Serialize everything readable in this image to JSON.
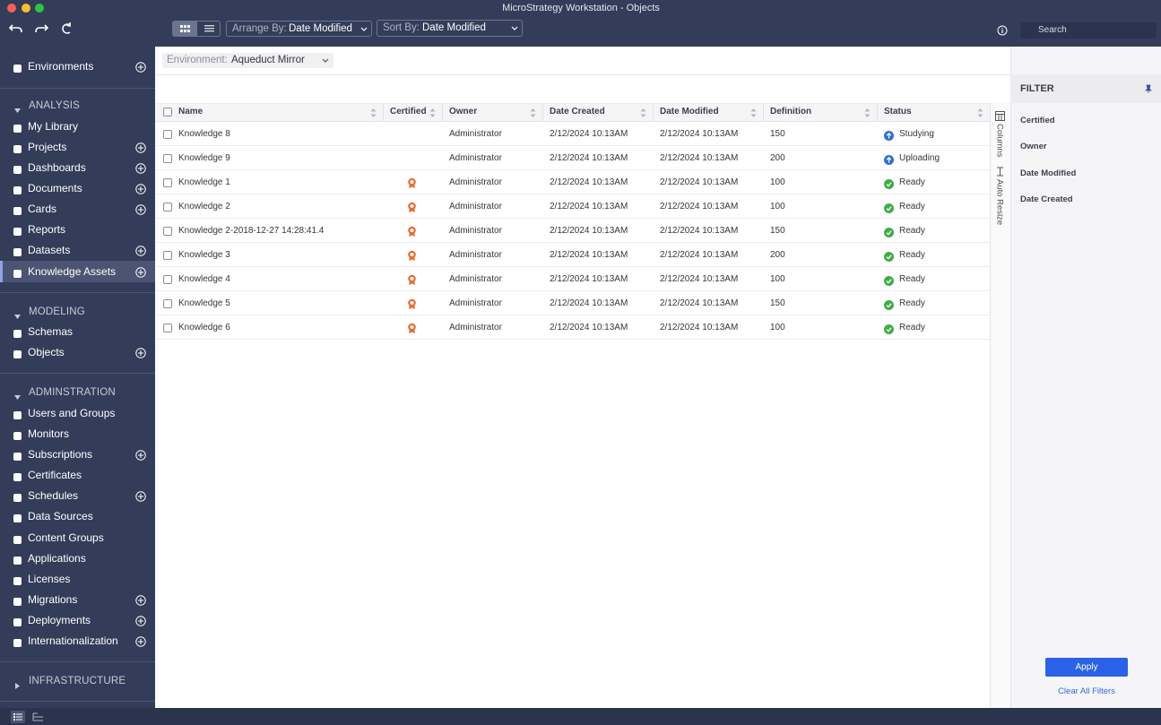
{
  "window": {
    "title": "MicroStrategy Workstation - Objects"
  },
  "toolbar": {
    "arrange_label": "Arrange By:",
    "arrange_value": "Date Modified",
    "sort_label": "Sort By:",
    "sort_value": "Date Modified",
    "search": "Search"
  },
  "environment": {
    "label": "Environment:",
    "value": "Aqueduct Mirror"
  },
  "sidebar": {
    "top": {
      "label": "Environments",
      "add": true
    },
    "sections": [
      {
        "title": "ANALYSIS",
        "expanded": true,
        "items": [
          {
            "label": "My Library",
            "add": false
          },
          {
            "label": "Projects",
            "add": true
          },
          {
            "label": "Dashboards",
            "add": true
          },
          {
            "label": "Documents",
            "add": true
          },
          {
            "label": "Cards",
            "add": true
          },
          {
            "label": "Reports",
            "add": false
          },
          {
            "label": "Datasets",
            "add": true
          },
          {
            "label": "Knowledge Assets",
            "add": true,
            "active": true
          }
        ]
      },
      {
        "title": "MODELING",
        "expanded": true,
        "items": [
          {
            "label": "Schemas",
            "add": false
          },
          {
            "label": "Objects",
            "add": true
          }
        ]
      },
      {
        "title": "ADMINSTRATION",
        "expanded": true,
        "items": [
          {
            "label": "Users and Groups",
            "add": false
          },
          {
            "label": "Monitors",
            "add": false
          },
          {
            "label": "Subscriptions",
            "add": true
          },
          {
            "label": "Certificates",
            "add": false
          },
          {
            "label": "Schedules",
            "add": true
          },
          {
            "label": "Data Sources",
            "add": false
          },
          {
            "label": "Content Groups",
            "add": false
          },
          {
            "label": "Applications",
            "add": false
          },
          {
            "label": "Licenses",
            "add": false
          },
          {
            "label": "Migrations",
            "add": true
          },
          {
            "label": "Deployments",
            "add": true
          },
          {
            "label": "Internationalization",
            "add": true
          }
        ]
      },
      {
        "title": "INFRASTRUCTURE",
        "expanded": false,
        "items": []
      }
    ]
  },
  "table": {
    "columns": [
      "Name",
      "Certified",
      "Owner",
      "Date Created",
      "Date Modified",
      "Definition",
      "Status"
    ],
    "rows": [
      {
        "name": "Knowledge 8",
        "certified": false,
        "owner": "Administrator",
        "date_created": "2/12/2024 10:13AM",
        "date_modified": "2/12/2024 10:13AM",
        "definition": 150,
        "status": "Studying",
        "status_icon": "upload"
      },
      {
        "name": "Knowledge 9",
        "certified": false,
        "owner": "Administrator",
        "date_created": "2/12/2024 10:13AM",
        "date_modified": "2/12/2024 10:13AM",
        "definition": 200,
        "status": "Uploading",
        "status_icon": "upload"
      },
      {
        "name": "Knowledge 1",
        "certified": true,
        "owner": "Administrator",
        "date_created": "2/12/2024 10:13AM",
        "date_modified": "2/12/2024 10:13AM",
        "definition": 100,
        "status": "Ready",
        "status_icon": "check"
      },
      {
        "name": "Knowledge 2",
        "certified": true,
        "owner": "Administrator",
        "date_created": "2/12/2024 10:13AM",
        "date_modified": "2/12/2024 10:13AM",
        "definition": 100,
        "status": "Ready",
        "status_icon": "check"
      },
      {
        "name": "Knowledge 2-2018-12-27 14:28:41.4",
        "certified": true,
        "owner": "Administrator",
        "date_created": "2/12/2024 10:13AM",
        "date_modified": "2/12/2024 10:13AM",
        "definition": 150,
        "status": "Ready",
        "status_icon": "check"
      },
      {
        "name": "Knowledge 3",
        "certified": true,
        "owner": "Administrator",
        "date_created": "2/12/2024 10:13AM",
        "date_modified": "2/12/2024 10:13AM",
        "definition": 200,
        "status": "Ready",
        "status_icon": "check"
      },
      {
        "name": "Knowledge 4",
        "certified": true,
        "owner": "Administrator",
        "date_created": "2/12/2024 10:13AM",
        "date_modified": "2/12/2024 10:13AM",
        "definition": 100,
        "status": "Ready",
        "status_icon": "check"
      },
      {
        "name": "Knowledge 5",
        "certified": true,
        "owner": "Administrator",
        "date_created": "2/12/2024 10:13AM",
        "date_modified": "2/12/2024 10:13AM",
        "definition": 150,
        "status": "Ready",
        "status_icon": "check"
      },
      {
        "name": "Knowledge 6",
        "certified": true,
        "owner": "Administrator",
        "date_created": "2/12/2024 10:13AM",
        "date_modified": "2/12/2024 10:13AM",
        "definition": 100,
        "status": "Ready",
        "status_icon": "check"
      }
    ]
  },
  "side_tabs": [
    "Columns",
    "Auto Resize"
  ],
  "filter": {
    "title": "FILTER",
    "items": [
      "Certified",
      "Owner",
      "Date Modified",
      "Date Created"
    ],
    "apply": "Apply",
    "clear": "Clear All Filters"
  }
}
